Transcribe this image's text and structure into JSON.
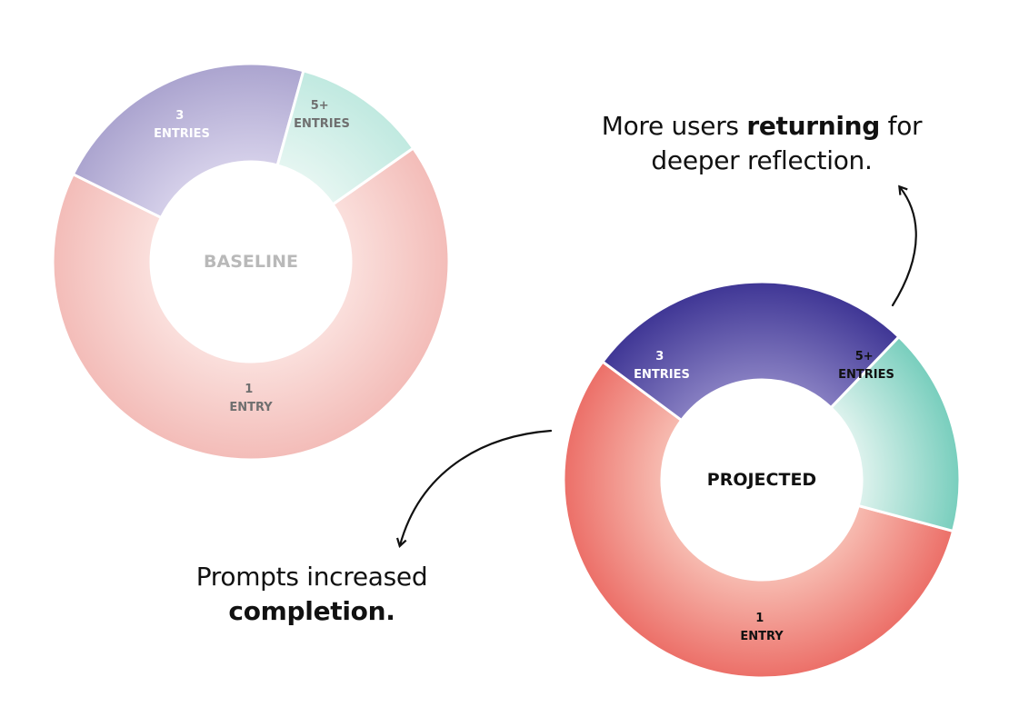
{
  "colors": {
    "baseline": {
      "one_entry": "#f3c1bd",
      "three_entries": "#aca5cf",
      "five_plus_entries": "#c5ebe3",
      "center_label": "#b9b9b9",
      "segment_label": "#6f6f6f"
    },
    "projected": {
      "one_entry": "#ec6f68",
      "three_entries": "#433a99",
      "five_plus_entries": "#7dd0c0",
      "center_label": "#111111",
      "segment_label_dark": "#ffffff",
      "segment_label_light": "#111111"
    },
    "arrow": "#111111"
  },
  "chart_data": [
    {
      "type": "pie",
      "center_label": "BASELINE",
      "slices": [
        {
          "line1": "1",
          "line2": "ENTRY",
          "share": 0.67
        },
        {
          "line1": "3",
          "line2": "ENTRIES",
          "share": 0.22
        },
        {
          "line1": "5+",
          "line2": "ENTRIES",
          "share": 0.11
        }
      ]
    },
    {
      "type": "pie",
      "center_label": "PROJECTED",
      "slices": [
        {
          "line1": "1",
          "line2": "ENTRY",
          "share": 0.56
        },
        {
          "line1": "3",
          "line2": "ENTRIES",
          "share": 0.27
        },
        {
          "line1": "5+",
          "line2": "ENTRIES",
          "share": 0.17
        }
      ]
    }
  ],
  "annotations": {
    "returning": {
      "before": "More users ",
      "bold": "returning",
      "after": " for deeper reflection."
    },
    "completion": {
      "before": "Prompts increased ",
      "bold": "completion."
    }
  }
}
